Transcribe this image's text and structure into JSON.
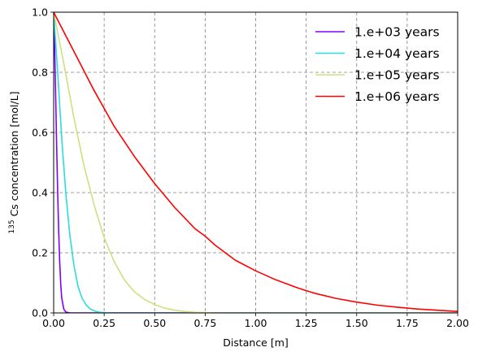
{
  "chart_data": {
    "type": "line",
    "xlabel": "Distance [m]",
    "ylabel": {
      "superscript": "135",
      "text": " Cs concentration [mol/L]"
    },
    "xlim": [
      0.0,
      2.0
    ],
    "ylim": [
      0.0,
      1.0
    ],
    "xticks": [
      "0.00",
      "0.25",
      "0.50",
      "0.75",
      "1.00",
      "1.25",
      "1.50",
      "1.75",
      "2.00"
    ],
    "yticks": [
      "0.0",
      "0.2",
      "0.4",
      "0.6",
      "0.8",
      "1.0"
    ],
    "grid": true,
    "grid_style": "dashed",
    "legend_position": "top-right",
    "series": [
      {
        "name": "1.e+03 years",
        "color": "#8000ff",
        "x": [
          0,
          0.005,
          0.01,
          0.015,
          0.02,
          0.025,
          0.03,
          0.035,
          0.04,
          0.05,
          0.06,
          0.08,
          0.1,
          0.2,
          0.5,
          1.0,
          1.5,
          2.0
        ],
        "y": [
          1.0,
          0.88,
          0.72,
          0.55,
          0.4,
          0.27,
          0.17,
          0.095,
          0.05,
          0.013,
          0.003,
          0.0,
          0.0,
          0.0,
          0.0,
          0.0,
          0.0,
          0.0
        ]
      },
      {
        "name": "1.e+04 years",
        "color": "#2adddd",
        "x": [
          0,
          0.02,
          0.04,
          0.06,
          0.08,
          0.1,
          0.12,
          0.14,
          0.16,
          0.18,
          0.2,
          0.22,
          0.25,
          0.3,
          0.5,
          1.0,
          1.5,
          2.0
        ],
        "y": [
          1.0,
          0.8,
          0.58,
          0.4,
          0.26,
          0.16,
          0.09,
          0.05,
          0.027,
          0.014,
          0.007,
          0.003,
          0.001,
          0.0,
          0.0,
          0.0,
          0.0,
          0.0
        ]
      },
      {
        "name": "1.e+05 years",
        "color": "#d4dd80",
        "x": [
          0,
          0.05,
          0.1,
          0.15,
          0.2,
          0.25,
          0.3,
          0.35,
          0.4,
          0.45,
          0.5,
          0.55,
          0.6,
          0.65,
          0.7,
          0.75,
          0.8,
          1.0,
          1.5,
          2.0
        ],
        "y": [
          1.0,
          0.83,
          0.65,
          0.49,
          0.36,
          0.25,
          0.17,
          0.11,
          0.07,
          0.045,
          0.028,
          0.016,
          0.009,
          0.005,
          0.002,
          0.001,
          0.0,
          0.0,
          0.0,
          0.0
        ]
      },
      {
        "name": "1.e+06 years",
        "color": "#ff0000",
        "x": [
          0,
          0.1,
          0.2,
          0.25,
          0.3,
          0.4,
          0.5,
          0.6,
          0.7,
          0.75,
          0.8,
          0.9,
          1.0,
          1.1,
          1.2,
          1.25,
          1.3,
          1.4,
          1.5,
          1.6,
          1.7,
          1.75,
          1.8,
          1.9,
          2.0
        ],
        "y": [
          1.0,
          0.87,
          0.74,
          0.68,
          0.62,
          0.52,
          0.43,
          0.35,
          0.28,
          0.255,
          0.225,
          0.175,
          0.14,
          0.11,
          0.085,
          0.074,
          0.064,
          0.048,
          0.036,
          0.026,
          0.019,
          0.016,
          0.013,
          0.009,
          0.005
        ]
      }
    ]
  }
}
